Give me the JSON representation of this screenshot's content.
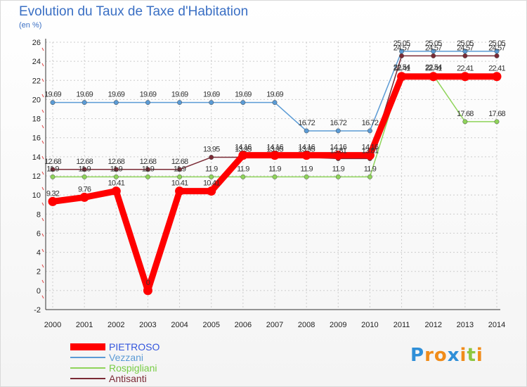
{
  "chart_data": {
    "type": "line",
    "title": "Evolution du Taux de Taxe d'Habitation",
    "subtitle": "(en %)",
    "x": [
      "2000",
      "2001",
      "2002",
      "2003",
      "2004",
      "2005",
      "2006",
      "2007",
      "2008",
      "2009",
      "2010",
      "2011",
      "2012",
      "2013",
      "2014"
    ],
    "ylim": [
      -2,
      26
    ],
    "yticks": [
      -2,
      0,
      2,
      4,
      6,
      8,
      10,
      12,
      14,
      16,
      18,
      20,
      22,
      24,
      26
    ],
    "grid": true,
    "legend_position": "bottom-left",
    "series": [
      {
        "name": "PIETROSO",
        "color": "#ff0000",
        "legend_color": "#3355dd",
        "values": [
          9.32,
          9.76,
          10.41,
          0,
          10.41,
          10.41,
          14.16,
          14.16,
          14.16,
          14.16,
          14.16,
          22.41,
          22.41,
          22.41,
          22.41
        ],
        "labels": [
          "9.32",
          "9.76",
          "10.41",
          "0",
          "10.41",
          "10.41",
          "14.16",
          "14.16",
          "14.16",
          "14.16",
          "14.16",
          "22.41",
          "22.41",
          "22.41",
          "22.41"
        ]
      },
      {
        "name": "Vezzani",
        "color": "#5b9bd5",
        "legend_color": "#5b9bd5",
        "values": [
          19.69,
          19.69,
          19.69,
          19.69,
          19.69,
          19.69,
          19.69,
          19.69,
          16.72,
          16.72,
          16.72,
          25.05,
          25.05,
          25.05,
          25.05
        ],
        "labels": [
          "19.69",
          "19.69",
          "19.69",
          "19.69",
          "19.69",
          "19.69",
          "19.69",
          "19.69",
          "16.72",
          "16.72",
          "16.72",
          "25.05",
          "25.05",
          "25.05",
          "25.05"
        ]
      },
      {
        "name": "Rospigliani",
        "color": "#8fd45a",
        "legend_color": "#77cc44",
        "values": [
          11.9,
          11.9,
          11.9,
          11.9,
          11.9,
          11.9,
          11.9,
          11.9,
          11.9,
          11.9,
          11.9,
          22.54,
          22.54,
          17.68,
          17.68
        ],
        "labels": [
          "11.9",
          "11.9",
          "11.9",
          "11.9",
          "11.9",
          "11.9",
          "11.9",
          "11.9",
          "11.9",
          "11.9",
          "11.9",
          "22.54",
          "22.54",
          "17.68",
          "17.68"
        ]
      },
      {
        "name": "Antisanti",
        "color": "#7a2a35",
        "legend_color": "#7a2a35",
        "values": [
          12.68,
          12.68,
          12.68,
          12.68,
          12.68,
          13.95,
          13.95,
          13.95,
          13.95,
          13.81,
          13.81,
          24.57,
          24.57,
          24.57,
          24.57
        ],
        "labels": [
          "12.68",
          "12.68",
          "12.68",
          "12.68",
          "12.68",
          "13.95",
          "13.95",
          "13.95",
          "13.95",
          "13.81",
          "13.81",
          "24.57",
          "24.57",
          "24.57",
          "24.57"
        ]
      }
    ]
  },
  "logo": {
    "text": "Proxiti",
    "letters": [
      "P",
      "r",
      "o",
      "x",
      "i",
      "t",
      "i"
    ],
    "colors": [
      "#2f8fd8",
      "#f08c1a",
      "#f08c1a",
      "#2f8fd8",
      "#f08c1a",
      "#8cc63f",
      "#f08c1a"
    ]
  }
}
